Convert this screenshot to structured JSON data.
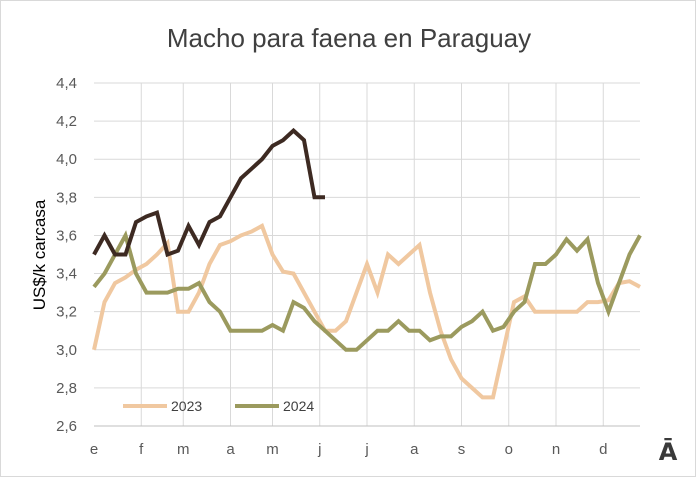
{
  "chart_data": {
    "type": "line",
    "title": "Macho para faena en Paraguay",
    "xlabel": "",
    "ylabel": "US$/k carcasa",
    "ylim": [
      2.6,
      4.4
    ],
    "ytick_values": [
      2.6,
      2.8,
      3.0,
      3.2,
      3.4,
      3.6,
      3.8,
      4.0,
      4.2,
      4.4
    ],
    "ytick_labels": [
      "2,6",
      "2,8",
      "3,0",
      "3,2",
      "3,4",
      "3,6",
      "3,8",
      "4,0",
      "4,2",
      "4,4"
    ],
    "x_domain": [
      1,
      53
    ],
    "x_unit": "week",
    "month_labels": [
      "e",
      "f",
      "m",
      "a",
      "m",
      "j",
      "j",
      "a",
      "s",
      "o",
      "n",
      "d"
    ],
    "month_positions": [
      1,
      5.5,
      9.5,
      14,
      18,
      22.5,
      27,
      31.5,
      36,
      40.5,
      45,
      49.5
    ],
    "grid": true,
    "legend_position": "bottom-left",
    "series": [
      {
        "name": "2023",
        "color": "#f0c8a0",
        "x": [
          1,
          2,
          3,
          4,
          5,
          6,
          7,
          8,
          9,
          10,
          11,
          12,
          13,
          14,
          15,
          16,
          17,
          18,
          19,
          20,
          21,
          22,
          23,
          24,
          25,
          26,
          27,
          28,
          29,
          30,
          31,
          32,
          33,
          34,
          35,
          36,
          37,
          38,
          39,
          40,
          41,
          42,
          43,
          44,
          45,
          46,
          47,
          48,
          49,
          50,
          51,
          52,
          53
        ],
        "values": [
          3.0,
          3.25,
          3.35,
          3.38,
          3.42,
          3.45,
          3.5,
          3.56,
          3.2,
          3.2,
          3.3,
          3.45,
          3.55,
          3.57,
          3.6,
          3.62,
          3.65,
          3.5,
          3.41,
          3.4,
          3.3,
          3.2,
          3.1,
          3.1,
          3.15,
          3.3,
          3.45,
          3.3,
          3.5,
          3.45,
          3.5,
          3.55,
          3.3,
          3.1,
          2.95,
          2.85,
          2.8,
          2.75,
          2.75,
          3.0,
          3.25,
          3.28,
          3.2,
          3.2,
          3.2,
          3.2,
          3.2,
          3.25,
          3.25,
          3.26,
          3.35,
          3.36,
          3.33
        ]
      },
      {
        "name": "2024",
        "color": "#9b9a5e",
        "x": [
          1,
          2,
          3,
          4,
          5,
          6,
          7,
          8,
          9,
          10,
          11,
          12,
          13,
          14,
          15,
          16,
          17,
          18,
          19,
          20,
          21,
          22,
          23,
          24,
          25,
          26,
          27,
          28,
          29,
          30,
          31,
          32,
          33,
          34,
          35,
          36,
          37,
          38,
          39,
          40,
          41,
          42,
          43,
          44,
          45,
          46,
          47,
          48,
          49,
          50,
          51,
          52,
          53
        ],
        "values": [
          3.33,
          3.4,
          3.5,
          3.6,
          3.4,
          3.3,
          3.3,
          3.3,
          3.32,
          3.32,
          3.35,
          3.25,
          3.2,
          3.1,
          3.1,
          3.1,
          3.1,
          3.13,
          3.1,
          3.25,
          3.22,
          3.15,
          3.1,
          3.05,
          3.0,
          3.0,
          3.05,
          3.1,
          3.1,
          3.15,
          3.1,
          3.1,
          3.05,
          3.07,
          3.07,
          3.12,
          3.15,
          3.2,
          3.1,
          3.12,
          3.2,
          3.25,
          3.45,
          3.45,
          3.5,
          3.58,
          3.52,
          3.58,
          3.35,
          3.2,
          3.35,
          3.5,
          3.6
        ]
      },
      {
        "name": "",
        "color": "#3d2a22",
        "x": [
          1,
          2,
          3,
          4,
          5,
          6,
          7,
          8,
          9,
          10,
          11,
          12,
          13,
          14,
          15,
          16,
          17,
          18,
          19,
          20,
          21,
          22,
          23
        ],
        "values": [
          3.5,
          3.6,
          3.5,
          3.5,
          3.67,
          3.7,
          3.72,
          3.5,
          3.52,
          3.65,
          3.55,
          3.67,
          3.7,
          3.8,
          3.9,
          3.95,
          4.0,
          4.07,
          4.1,
          4.15,
          4.1,
          3.8,
          3.8
        ]
      }
    ],
    "legend": [
      {
        "label": "2023",
        "color": "#f0c8a0"
      },
      {
        "label": "2024",
        "color": "#9b9a5e"
      }
    ]
  },
  "corner_mark": "Ā"
}
